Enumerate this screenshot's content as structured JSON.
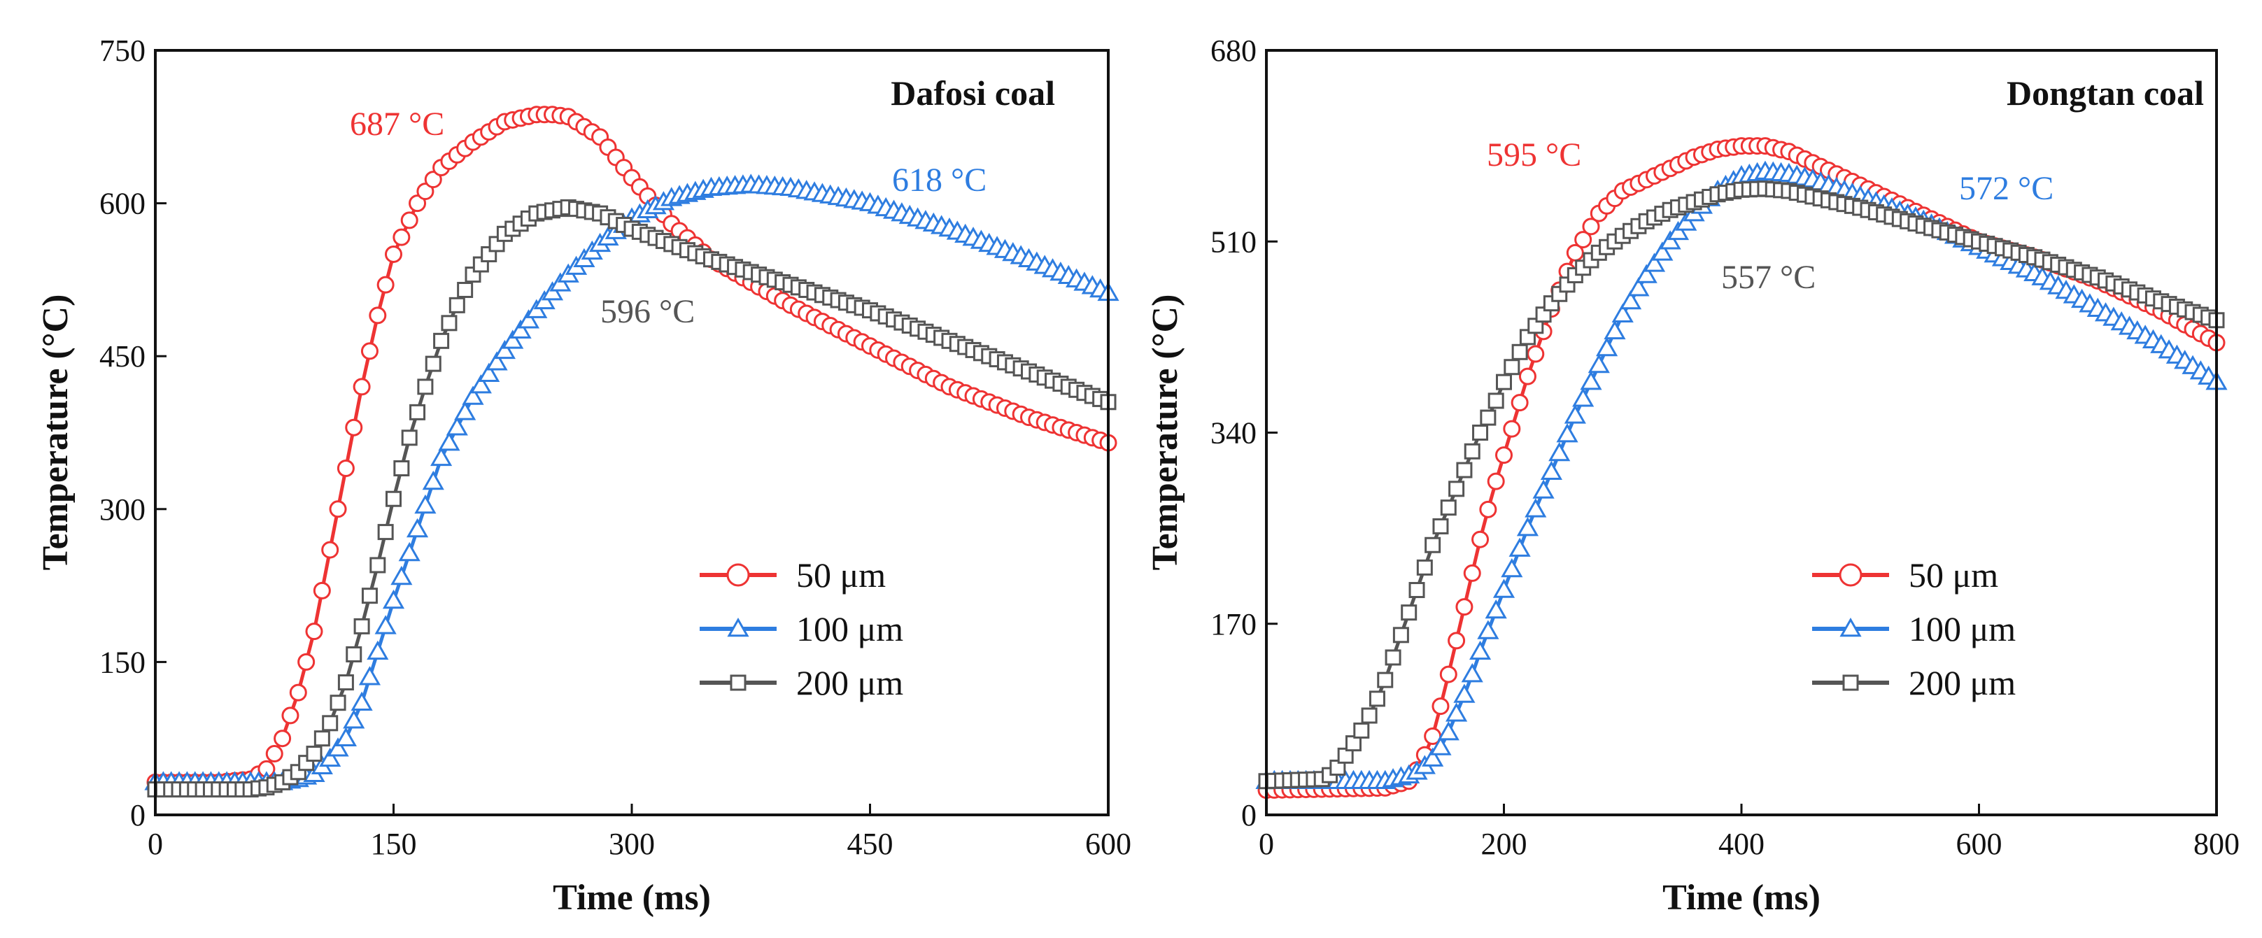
{
  "chart_data": [
    {
      "type": "line",
      "title": "Dafosi coal",
      "xlabel": "Time (ms)",
      "ylabel": "Temperature (°C)",
      "xlim": [
        0,
        600
      ],
      "ylim": [
        0,
        750
      ],
      "xticks": [
        "0",
        "150",
        "300",
        "450",
        "600"
      ],
      "yticks": [
        "0",
        "150",
        "300",
        "450",
        "600",
        "750"
      ],
      "annotations": [
        "687 °C",
        "618 °C",
        "596 °C"
      ],
      "series": [
        {
          "name": "50 μm",
          "color": "#ee3333",
          "marker": "circle",
          "x": [
            0,
            40,
            60,
            70,
            80,
            90,
            100,
            110,
            120,
            130,
            140,
            150,
            165,
            180,
            200,
            220,
            240,
            250,
            260,
            280,
            300,
            325,
            350,
            400,
            450,
            500,
            550,
            600
          ],
          "y": [
            32,
            32,
            35,
            45,
            75,
            120,
            180,
            260,
            340,
            420,
            490,
            550,
            600,
            635,
            660,
            680,
            687,
            687,
            685,
            665,
            625,
            580,
            545,
            500,
            460,
            420,
            390,
            365
          ]
        },
        {
          "name": "100 μm",
          "color": "#2e7de0",
          "marker": "triangle",
          "x": [
            0,
            80,
            90,
            100,
            110,
            120,
            130,
            140,
            150,
            165,
            180,
            200,
            220,
            240,
            260,
            280,
            300,
            325,
            350,
            375,
            400,
            450,
            500,
            550,
            600
          ],
          "y": [
            32,
            32,
            35,
            40,
            55,
            75,
            110,
            160,
            210,
            280,
            350,
            410,
            455,
            495,
            530,
            560,
            585,
            605,
            615,
            618,
            615,
            600,
            575,
            545,
            512
          ]
        },
        {
          "name": "200 μm",
          "color": "#555555",
          "marker": "square",
          "x": [
            0,
            60,
            70,
            80,
            90,
            100,
            110,
            120,
            130,
            140,
            150,
            160,
            170,
            180,
            190,
            200,
            220,
            240,
            260,
            280,
            300,
            350,
            400,
            450,
            500,
            550,
            600
          ],
          "y": [
            25,
            25,
            27,
            32,
            42,
            60,
            90,
            130,
            185,
            245,
            310,
            370,
            420,
            465,
            500,
            530,
            570,
            590,
            596,
            590,
            575,
            545,
            520,
            495,
            465,
            435,
            405
          ]
        }
      ],
      "legend": [
        "50 μm",
        "100 μm",
        "200 μm"
      ]
    },
    {
      "type": "line",
      "title": "Dongtan coal",
      "xlabel": "Time (ms)",
      "ylabel": "Temperature (°C)",
      "xlim": [
        0,
        800
      ],
      "ylim": [
        0,
        680
      ],
      "xticks": [
        "0",
        "200",
        "400",
        "600",
        "800"
      ],
      "yticks": [
        "0",
        "170",
        "340",
        "510",
        "680"
      ],
      "annotations": [
        "595 °C",
        "572 °C",
        "557 °C"
      ],
      "series": [
        {
          "name": "50 μm",
          "color": "#ee3333",
          "marker": "circle",
          "x": [
            0,
            100,
            120,
            130,
            140,
            150,
            160,
            170,
            180,
            190,
            200,
            210,
            220,
            240,
            260,
            280,
            300,
            320,
            340,
            360,
            380,
            400,
            420,
            440,
            460,
            500,
            550,
            600,
            650,
            700,
            750,
            800
          ],
          "y": [
            22,
            24,
            30,
            45,
            70,
            110,
            155,
            200,
            245,
            285,
            320,
            355,
            390,
            450,
            500,
            535,
            555,
            565,
            575,
            585,
            592,
            595,
            595,
            590,
            580,
            560,
            535,
            510,
            495,
            475,
            450,
            420
          ]
        },
        {
          "name": "100 μm",
          "color": "#2e7de0",
          "marker": "triangle",
          "x": [
            0,
            100,
            120,
            130,
            140,
            150,
            160,
            170,
            180,
            200,
            220,
            240,
            260,
            280,
            300,
            320,
            340,
            360,
            380,
            400,
            420,
            440,
            460,
            500,
            550,
            600,
            650,
            700,
            750,
            800
          ],
          "y": [
            30,
            30,
            35,
            40,
            50,
            65,
            90,
            115,
            145,
            200,
            255,
            305,
            355,
            400,
            445,
            480,
            510,
            535,
            555,
            568,
            572,
            570,
            565,
            550,
            530,
            505,
            480,
            450,
            420,
            385
          ]
        },
        {
          "name": "200 μm",
          "color": "#555555",
          "marker": "square",
          "x": [
            0,
            50,
            60,
            70,
            80,
            90,
            100,
            110,
            120,
            130,
            140,
            150,
            160,
            170,
            180,
            190,
            200,
            220,
            240,
            260,
            280,
            300,
            320,
            340,
            360,
            380,
            400,
            420,
            440,
            460,
            500,
            550,
            600,
            650,
            700,
            750,
            800
          ],
          "y": [
            30,
            32,
            42,
            58,
            75,
            95,
            120,
            150,
            180,
            210,
            240,
            265,
            290,
            315,
            340,
            360,
            385,
            425,
            455,
            480,
            500,
            515,
            528,
            538,
            545,
            552,
            556,
            557,
            555,
            550,
            540,
            525,
            510,
            495,
            478,
            458,
            440
          ]
        }
      ],
      "legend": [
        "50 μm",
        "100 μm",
        "200 μm"
      ]
    }
  ]
}
